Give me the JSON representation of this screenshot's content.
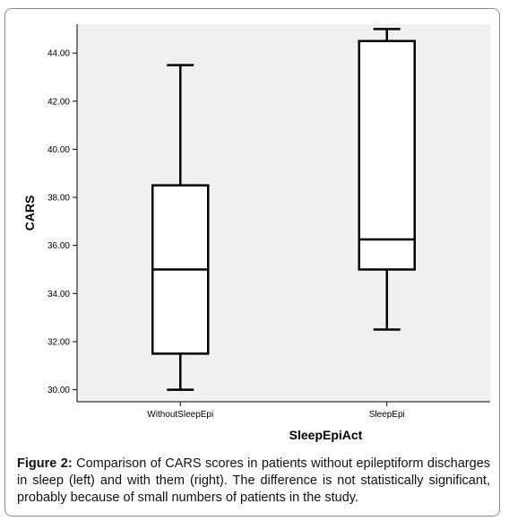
{
  "chart_data": {
    "type": "box",
    "categories": [
      "WithoutSleepEpi",
      "SleepEpi"
    ],
    "boxes": [
      {
        "category": "WithoutSleepEpi",
        "min": 30.0,
        "q1": 31.5,
        "median": 35.0,
        "q3": 38.5,
        "max": 43.5
      },
      {
        "category": "SleepEpi",
        "min": 32.5,
        "q1": 35.0,
        "median": 36.25,
        "q3": 44.5,
        "max": 45.0
      }
    ],
    "xlabel": "SleepEpiAct",
    "ylabel": "CARS",
    "ylim": [
      29.5,
      45.2
    ],
    "yticks": [
      30,
      32,
      34,
      36,
      38,
      40,
      42,
      44
    ],
    "ytick_labels": [
      "30.00",
      "32.00",
      "34.00",
      "36.00",
      "38.00",
      "40.00",
      "42.00",
      "44.00"
    ],
    "grid": false,
    "plot_background": "#f0f0f0"
  },
  "caption": {
    "label": "Figure 2:",
    "text": "Comparison of CARS scores in patients without epileptiform discharges in sleep (left) and with them (right). The difference is not statistically significant, probably because of small numbers of patients in the study."
  }
}
